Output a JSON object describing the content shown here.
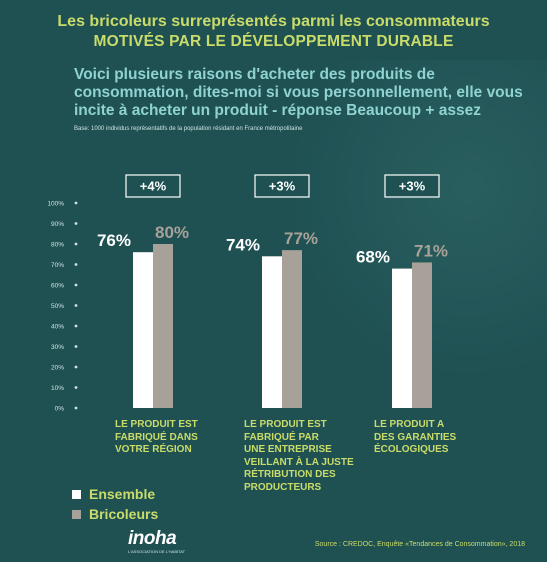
{
  "header": {
    "title_line1": "Les bricoleurs surreprésentés parmi les consommateurs",
    "title_line2": "MOTIVÉS PAR LE DÉVELOPPEMENT DURABLE",
    "question": "Voici plusieurs raisons d'acheter des produits de consommation, dites-moi si vous personnellement, elle vous incite à acheter un produit - réponse Beaucoup + assez",
    "base": "Base: 1000 individus représentatifs de la population résidant en France métropolitaine"
  },
  "chart_data": {
    "type": "bar",
    "ylim": [
      0,
      100
    ],
    "y_ticks": [
      "0%",
      "10%",
      "20%",
      "30%",
      "40%",
      "50%",
      "60%",
      "70%",
      "80%",
      "90%",
      "100%"
    ],
    "categories": [
      "LE PRODUIT EST FABRIQUÉ DANS VOTRE RÉGION",
      "LE PRODUIT EST FABRIQUÉ PAR UNE ENTREPRISE VEILLANT À LA JUSTE RÉTRIBUTION DES PRODUCTEURS",
      "LE PRODUIT A DES GARANTIES ÉCOLOGIQUES"
    ],
    "category_lines": [
      [
        "LE PRODUIT EST",
        "FABRIQUÉ DANS",
        "VOTRE RÉGION"
      ],
      [
        "LE PRODUIT EST",
        "FABRIQUÉ PAR",
        "UNE ENTREPRISE",
        "VEILLANT À LA JUSTE",
        "RÉTRIBUTION DES",
        "PRODUCTEURS"
      ],
      [
        "LE PRODUIT A",
        "DES GARANTIES",
        "ÉCOLOGIQUES"
      ]
    ],
    "series": [
      {
        "name": "Ensemble",
        "values": [
          76,
          74,
          68
        ],
        "labels": [
          "76%",
          "74%",
          "68%"
        ],
        "color": "#ffffff"
      },
      {
        "name": "Bricoleurs",
        "values": [
          80,
          77,
          71
        ],
        "labels": [
          "80%",
          "77%",
          "71%"
        ],
        "color": "#a8a199"
      }
    ],
    "differences": [
      "+4%",
      "+3%",
      "+3%"
    ],
    "grid": false,
    "legend_position": "bottom-left"
  },
  "footer": {
    "logo": "inoha",
    "logo_tagline": "L'ASSOCIATION DE L'HABITAT",
    "source": "Source : CREDOC, Enquête «Tendances de Consommation», 2018"
  },
  "colors": {
    "background": "#1f5153",
    "title": "#c9dc6a",
    "question": "#8fd3d0",
    "ensemble": "#ffffff",
    "bricoleurs": "#a8a199"
  }
}
